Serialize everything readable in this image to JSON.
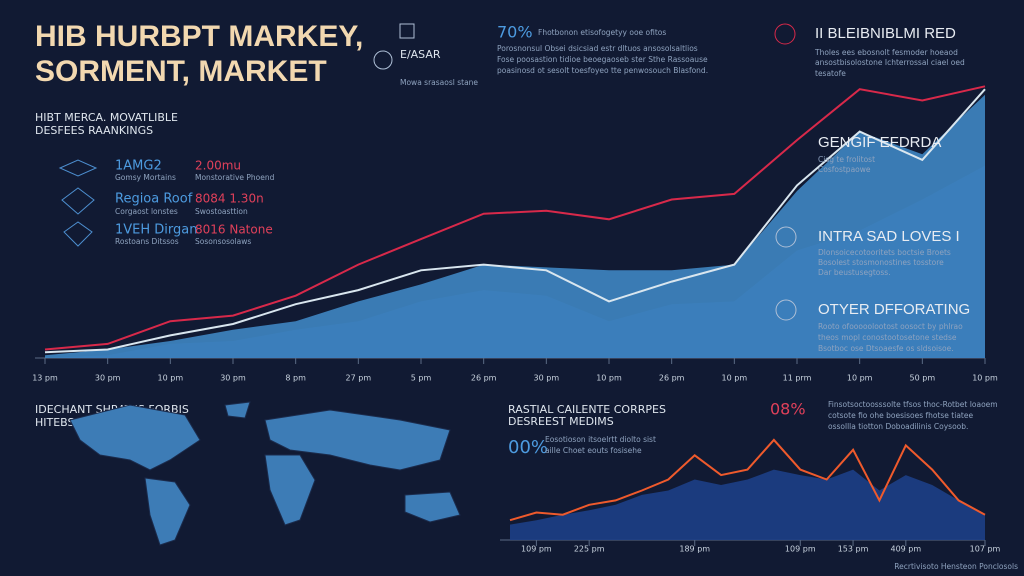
{
  "header": {
    "title_line1": "HIB HURBPT MARKEY,",
    "title_line2": "SORMENT, MARKET",
    "subtitle_line1": "HIBT MERCA. MOVATLIBLE",
    "subtitle_line2": "DESFEES RAANKINGS"
  },
  "stats": [
    {
      "name": "1AMG2",
      "note": "Gomsy Mortains",
      "value": "2.00mu",
      "value_note": "Monstorative Phoend"
    },
    {
      "name": "Regioa Roof",
      "note": "Corgaost lonstes",
      "value": "8084 1.30n",
      "value_note": "Swostoasttion"
    },
    {
      "name": "1VEH Dirgan",
      "note": "Rostoans Ditssos",
      "value": "8016 Natone",
      "value_note": "Sosonsosolaws"
    }
  ],
  "top_center": {
    "label1": "E/ASAR",
    "label2": "Mowa srasaosl stane",
    "percent": "70%",
    "text1": "Fhotbonon etisofogetyy ooe ofitos",
    "text2": "Porosnonsul Obsei dsicsiad estr dltuos ansosolsaltlios",
    "text3": "Fose poosastion tidioe beoegaoseb ster Sthe Rassoause",
    "text4": "poasinosd ot sesolt toesfoyeo tte penwosouch Blasfond."
  },
  "top_right": {
    "heading": "II BLEIBNIBLMI RED",
    "text1": "Tholes ees ebosnolt fesmoder hoeaod",
    "text2": "ansostbisolostone Ichterrossal ciael oed",
    "text3": "tesatofe"
  },
  "callouts": [
    {
      "heading": "GENGIF EFDRDA",
      "text1": "Cisg te frolitost",
      "text2": "Cosfostpaowe"
    },
    {
      "heading": "INTRA SAD LOVES I",
      "text1": "Dlonsoicecotooritets boctsie Broets",
      "text2": "Bosolest stosmonostines tosstore",
      "text3": "Dar beustusegtoss."
    },
    {
      "heading": "OTYER DFFORATING",
      "text1": "Rooto ofooooolootost oosoct by phlrao",
      "text2": "theos mopl conostootosetone stedse",
      "text3": "Bsotboc ose Dtsoaesfe os sldsoisoe."
    }
  ],
  "map_panel": {
    "title_line1": "IDECHANT SHRATIJS FORBIS",
    "title_line2": "HITEBS"
  },
  "bottom_panel": {
    "title_line1": "RASTIAL CAILENTE CORRPES",
    "title_line2": "DESREEST MEDIMS",
    "percent1": "00%",
    "text1": "Eosotioson itsoelrtt diolto sist",
    "text2": "aille Choet eouts fosisehe",
    "percent2": "08%",
    "text3": "Finsotsoctoosssolte tfsos thoc-Rotbet Ioaoem",
    "text4": "cotsote fio ohe boesisoes fhotse tiatee",
    "text5": "ossollla tiotton Doboadilinis Coysoob.",
    "footer": "Recrtivisoto Hensteon Ponclosols"
  },
  "chart_data": [
    {
      "type": "line",
      "categories": [
        "13 pm",
        "30 pm",
        "10 pm",
        "30 pm",
        "8 pm",
        "27 pm",
        "5 pm",
        "26 pm",
        "30 pm",
        "10 pm",
        "26 pm",
        "10 pm",
        "11 prm",
        "10 pm",
        "50 pm",
        "10 pm"
      ],
      "ylim": [
        0,
        100
      ],
      "series": [
        {
          "color": "#1d3f86",
          "area": true,
          "values": [
            0,
            1,
            5,
            6,
            10,
            13,
            20,
            24,
            22,
            13,
            19,
            20,
            38,
            45,
            56,
            68
          ]
        },
        {
          "color": "#3f86c2",
          "area": true,
          "values": [
            1,
            3,
            6,
            10,
            13,
            20,
            26,
            33,
            32,
            31,
            31,
            33,
            59,
            80,
            72,
            93
          ]
        },
        {
          "color": "#d9e6ef",
          "area": false,
          "values": [
            2,
            3,
            8,
            12,
            19,
            24,
            31,
            33,
            31,
            20,
            27,
            33,
            61,
            80,
            70,
            95
          ]
        },
        {
          "color": "#d8294a",
          "area": false,
          "values": [
            3,
            5,
            13,
            15,
            22,
            33,
            42,
            51,
            52,
            49,
            56,
            58,
            77,
            95,
            91,
            96
          ]
        }
      ]
    },
    {
      "type": "line",
      "categories": [
        null,
        "109 pm",
        null,
        "225 pm",
        null,
        null,
        null,
        "189 pm",
        null,
        null,
        null,
        "109 pm",
        null,
        "153 pm",
        null,
        "409 pm",
        null,
        null,
        "107 pm"
      ],
      "ylim": [
        0,
        100
      ],
      "series": [
        {
          "color": "#1d3f86",
          "area": true,
          "values": [
            14,
            18,
            23,
            27,
            32,
            41,
            45,
            55,
            50,
            55,
            64,
            59,
            55,
            64,
            45,
            59,
            50,
            36,
            23
          ]
        },
        {
          "color": "#ef5a2c",
          "area": false,
          "values": [
            18,
            25,
            23,
            32,
            36,
            45,
            55,
            77,
            59,
            64,
            91,
            64,
            55,
            82,
            36,
            86,
            64,
            36,
            23
          ]
        }
      ]
    }
  ]
}
